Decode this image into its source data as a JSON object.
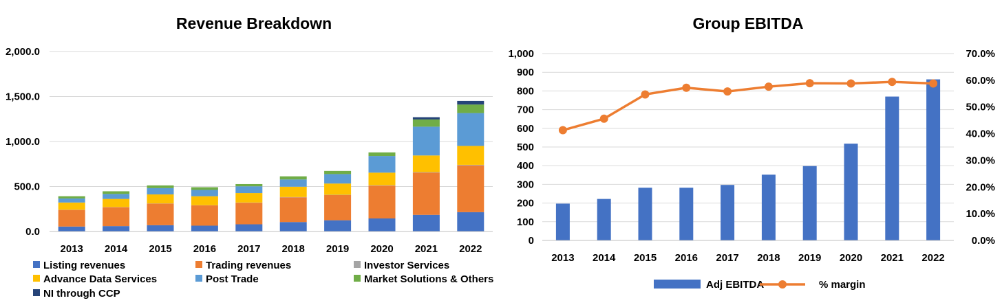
{
  "chart_data": [
    {
      "type": "bar",
      "stacked": true,
      "title": "Revenue Breakdown",
      "categories": [
        "2013",
        "2014",
        "2015",
        "2016",
        "2017",
        "2018",
        "2019",
        "2020",
        "2021",
        "2022"
      ],
      "ylim": [
        0,
        2000
      ],
      "yticks": [
        "0.0",
        "500.0",
        "1,000.0",
        "1,500.0",
        "2,000.0"
      ],
      "ytick_values": [
        0,
        500,
        1000,
        1500,
        2000
      ],
      "grid": true,
      "legend_position": "bottom",
      "series": [
        {
          "name": "Listing revenues",
          "color": "#4472c4",
          "values": [
            55,
            60,
            70,
            65,
            80,
            105,
            125,
            145,
            185,
            215
          ]
        },
        {
          "name": "Trading revenues",
          "color": "#ed7d31",
          "values": [
            185,
            210,
            240,
            225,
            240,
            275,
            280,
            365,
            470,
            520
          ]
        },
        {
          "name": "Investor Services",
          "color": "#a5a5a5",
          "values": [
            2,
            2,
            2,
            2,
            2,
            3,
            3,
            4,
            5,
            6
          ]
        },
        {
          "name": "Advance Data Services",
          "color": "#ffc000",
          "values": [
            80,
            90,
            100,
            100,
            105,
            115,
            125,
            140,
            185,
            210
          ]
        },
        {
          "name": "Post Trade",
          "color": "#5b9bd5",
          "values": [
            45,
            55,
            70,
            70,
            75,
            80,
            105,
            185,
            320,
            365
          ]
        },
        {
          "name": "Market Solutions & Others",
          "color": "#70ad47",
          "values": [
            25,
            30,
            30,
            30,
            25,
            35,
            35,
            40,
            80,
            95
          ]
        },
        {
          "name": "NI through CCP",
          "color": "#264478",
          "values": [
            0,
            0,
            0,
            0,
            0,
            0,
            0,
            0,
            25,
            40
          ]
        }
      ]
    },
    {
      "type": "bar+line",
      "title": "Group EBITDA",
      "categories": [
        "2013",
        "2014",
        "2015",
        "2016",
        "2017",
        "2018",
        "2019",
        "2020",
        "2021",
        "2022"
      ],
      "ylim": [
        0,
        1000
      ],
      "yticks": [
        "0",
        "100",
        "200",
        "300",
        "400",
        "500",
        "600",
        "700",
        "800",
        "900",
        "1,000"
      ],
      "ytick_values": [
        0,
        100,
        200,
        300,
        400,
        500,
        600,
        700,
        800,
        900,
        1000
      ],
      "y2lim": [
        0,
        0.7
      ],
      "y2ticks": [
        "0.0%",
        "10.0%",
        "20.0%",
        "30.0%",
        "40.0%",
        "50.0%",
        "60.0%",
        "70.0%"
      ],
      "y2tick_values": [
        0,
        0.1,
        0.2,
        0.3,
        0.4,
        0.5,
        0.6,
        0.7
      ],
      "grid": true,
      "legend_position": "bottom",
      "series": [
        {
          "name": "Adj EBITDA",
          "type": "bar",
          "axis": "left",
          "color": "#4472c4",
          "values": [
            197,
            222,
            282,
            282,
            297,
            352,
            398,
            518,
            770,
            862
          ]
        },
        {
          "name": "% margin",
          "type": "line",
          "axis": "right",
          "color": "#ed7d31",
          "values": [
            0.413,
            0.456,
            0.547,
            0.572,
            0.558,
            0.576,
            0.589,
            0.588,
            0.594,
            0.588
          ]
        }
      ]
    }
  ]
}
